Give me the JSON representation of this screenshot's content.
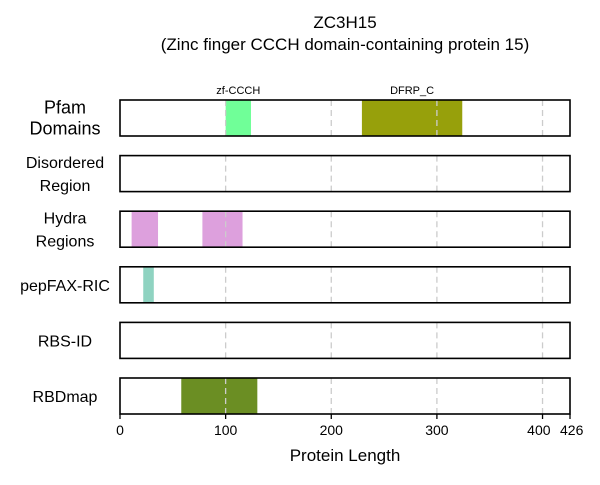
{
  "chart_data": {
    "type": "bar",
    "title": "ZC3H15",
    "subtitle": "(Zinc finger CCCH domain-containing protein 15)",
    "xlabel": "Protein Length",
    "xlim": [
      0,
      426
    ],
    "xticks": [
      0,
      100,
      200,
      300,
      400,
      426
    ],
    "xtick_labels": [
      "0",
      "100",
      "200",
      "300",
      "400",
      "426"
    ],
    "gridlines_x": [
      100,
      200,
      300,
      400
    ],
    "tracks": [
      {
        "label_lines": [
          "Pfam",
          "Domains"
        ],
        "large": true,
        "segments": [
          {
            "start": 100,
            "end": 124,
            "color": "#70ff98",
            "label": "zf-CCCH"
          },
          {
            "start": 229,
            "end": 324,
            "color": "#97a00b",
            "label": "DFRP_C"
          }
        ]
      },
      {
        "label_lines": [
          "Disordered",
          "Region"
        ],
        "large": false,
        "segments": []
      },
      {
        "label_lines": [
          "Hydra",
          "Regions"
        ],
        "large": false,
        "segments": [
          {
            "start": 11,
            "end": 36,
            "color": "#dda0dd"
          },
          {
            "start": 78,
            "end": 116,
            "color": "#dda0dd"
          }
        ]
      },
      {
        "label_lines": [
          "pepFAX-RIC"
        ],
        "large": false,
        "segments": [
          {
            "start": 22,
            "end": 32,
            "color": "#8fd3c1"
          }
        ]
      },
      {
        "label_lines": [
          "RBS-ID"
        ],
        "large": false,
        "segments": []
      },
      {
        "label_lines": [
          "RBDmap"
        ],
        "large": false,
        "segments": [
          {
            "start": 58,
            "end": 130,
            "color": "#6b8e23"
          }
        ]
      }
    ]
  }
}
